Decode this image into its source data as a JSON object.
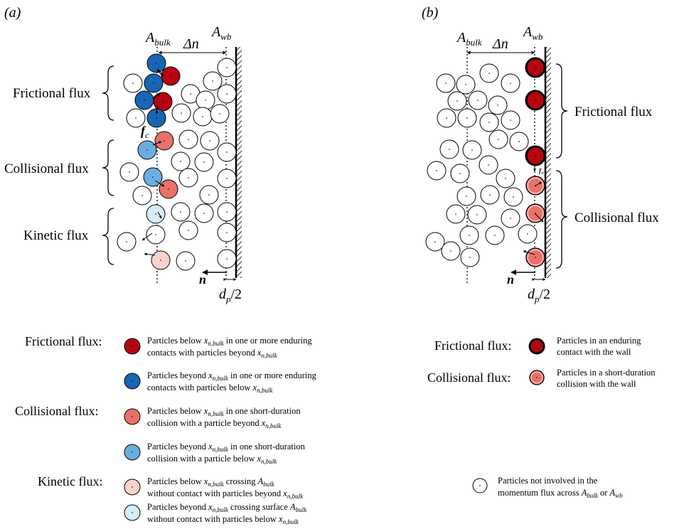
{
  "panel_a": {
    "tag": "(a)",
    "a_bulk": {
      "main": "A",
      "sub": "bulk"
    },
    "a_wb": {
      "main": "A",
      "sub": "wb"
    },
    "delta_n": "Δn",
    "n_label": "n",
    "dp_label": {
      "d": "d",
      "p": "p",
      "rest": "/2"
    },
    "fc_label": {
      "f": "f",
      "c": "c"
    },
    "frictional": "Frictional flux",
    "collisional": "Collisional flux",
    "kinetic": "Kinetic flux"
  },
  "panel_b": {
    "tag": "(b)",
    "a_bulk": {
      "main": "A",
      "sub": "bulk"
    },
    "a_wb": {
      "main": "A",
      "sub": "wb"
    },
    "delta_n": "Δn",
    "n_label": "n",
    "dp_label": {
      "d": "d",
      "p": "p",
      "rest": "/2"
    },
    "fw_label": {
      "f": "f",
      "w": "w"
    },
    "frictional": "Frictional flux",
    "collisional": "Collisional flux"
  },
  "colors": {
    "dark_red": "#b5050f",
    "dark_blue": "#1765b3",
    "salmon": "#e8716a",
    "light_blue": "#6aaee0",
    "pale_pink": "#f9d4cd",
    "pale_blue": "#d5ecfa"
  },
  "legend_left": {
    "frictional_title": "Frictional flux:",
    "collisional_title": "Collisional flux:",
    "kinetic_title": "Kinetic flux:",
    "items": [
      {
        "l1a": "Particles below ",
        "l1b": " in one or more enduring",
        "l2a": "contacts with particles beyond ",
        "l2b": ""
      },
      {
        "l1a": "Particles beyond ",
        "l1b": " in one or more enduring",
        "l2a": "contacts with particles below ",
        "l2b": ""
      },
      {
        "l1a": "Particles below ",
        "l1b": " in one short-duration",
        "l2a": "collision with a particle beyond ",
        "l2b": ""
      },
      {
        "l1a": "Particles beyond ",
        "l1b": " in one short-duration",
        "l2a": "collision with a particle below ",
        "l2b": ""
      },
      {
        "l1a": "Particles below ",
        "l1b": " crossing ",
        "l2a": "without contact with particles beyond ",
        "l2b": ""
      },
      {
        "l1a": "Particles beyond ",
        "l1b": " crossing surface ",
        "l2a": "without contact with particles below ",
        "l2b": ""
      }
    ],
    "x": "x",
    "x_sub": "n,bulk",
    "a": "A",
    "a_sub": "bulk"
  },
  "legend_right": {
    "frictional_title": "Frictional flux:",
    "collisional_title": "Collisional flux:",
    "fr_l1": "Particles in an enduring",
    "fr_l2": "contact with the wall",
    "co_l1": "Particles in a short-duration",
    "co_l2": "collision with the wall",
    "none_l1": "Particles not involved in the",
    "none_l2a": "momentum flux across ",
    "none_a": "A",
    "none_bulk": "bulk",
    "none_or": " or ",
    "none_wb": "wb"
  }
}
